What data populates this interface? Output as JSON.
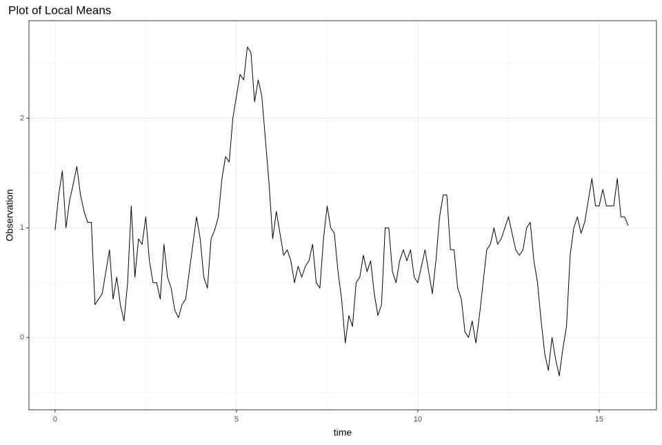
{
  "chart_data": {
    "type": "line",
    "title": "Plot of Local Means",
    "x_label": "time",
    "y_label": "Observation",
    "x": [
      0,
      0.1,
      0.2,
      0.3,
      0.4,
      0.5,
      0.6,
      0.7,
      0.8,
      0.9,
      1,
      1.1,
      1.2,
      1.3,
      1.4,
      1.5,
      1.6,
      1.7,
      1.8,
      1.9,
      2,
      2.1,
      2.2,
      2.3,
      2.4,
      2.5,
      2.6,
      2.7,
      2.8,
      2.9,
      3,
      3.1,
      3.2,
      3.3,
      3.4,
      3.5,
      3.6,
      3.7,
      3.8,
      3.9,
      4,
      4.1,
      4.2,
      4.3,
      4.4,
      4.5,
      4.6,
      4.7,
      4.8,
      4.9,
      5,
      5.1,
      5.2,
      5.3,
      5.4,
      5.5,
      5.6,
      5.7,
      5.8,
      5.9,
      6,
      6.1,
      6.2,
      6.3,
      6.4,
      6.5,
      6.6,
      6.7,
      6.8,
      6.9,
      7,
      7.1,
      7.2,
      7.3,
      7.4,
      7.5,
      7.6,
      7.7,
      7.8,
      7.9,
      8,
      8.1,
      8.2,
      8.3,
      8.4,
      8.5,
      8.6,
      8.7,
      8.8,
      8.9,
      9,
      9.1,
      9.2,
      9.3,
      9.4,
      9.5,
      9.6,
      9.7,
      9.8,
      9.9,
      10,
      10.1,
      10.2,
      10.3,
      10.4,
      10.5,
      10.6,
      10.7,
      10.8,
      10.9,
      11,
      11.1,
      11.2,
      11.3,
      11.4,
      11.5,
      11.6,
      11.7,
      11.8,
      11.9,
      12,
      12.1,
      12.2,
      12.3,
      12.4,
      12.5,
      12.6,
      12.7,
      12.8,
      12.9,
      13,
      13.1,
      13.2,
      13.3,
      13.4,
      13.5,
      13.6,
      13.7,
      13.8,
      13.9,
      14,
      14.1,
      14.2,
      14.3,
      14.4,
      14.5,
      14.6,
      14.7,
      14.8,
      14.9,
      15,
      15.1,
      15.2,
      15.3,
      15.4,
      15.5,
      15.6,
      15.7,
      15.8
    ],
    "series": [
      {
        "color": "#000000",
        "values": [
          0.98,
          1.3,
          1.52,
          1.0,
          1.25,
          1.4,
          1.56,
          1.3,
          1.15,
          1.05,
          1.05,
          0.3,
          0.35,
          0.4,
          0.6,
          0.8,
          0.35,
          0.55,
          0.3,
          0.15,
          0.5,
          1.2,
          0.55,
          0.9,
          0.85,
          1.1,
          0.7,
          0.5,
          0.5,
          0.35,
          0.85,
          0.55,
          0.45,
          0.25,
          0.18,
          0.3,
          0.35,
          0.6,
          0.85,
          1.1,
          0.9,
          0.55,
          0.45,
          0.9,
          0.98,
          1.1,
          1.45,
          1.65,
          1.6,
          2.0,
          2.2,
          2.4,
          2.35,
          2.65,
          2.6,
          2.15,
          2.35,
          2.2,
          1.8,
          1.4,
          0.9,
          1.15,
          0.95,
          0.75,
          0.8,
          0.7,
          0.5,
          0.65,
          0.55,
          0.65,
          0.7,
          0.85,
          0.5,
          0.45,
          0.9,
          1.2,
          1.0,
          0.95,
          0.6,
          0.35,
          -0.05,
          0.2,
          0.1,
          0.5,
          0.55,
          0.75,
          0.6,
          0.7,
          0.4,
          0.2,
          0.3,
          1.0,
          1.0,
          0.6,
          0.5,
          0.7,
          0.8,
          0.7,
          0.8,
          0.55,
          0.5,
          0.65,
          0.8,
          0.6,
          0.4,
          0.7,
          1.1,
          1.3,
          1.3,
          0.8,
          0.8,
          0.45,
          0.35,
          0.05,
          0.0,
          0.15,
          -0.05,
          0.2,
          0.5,
          0.8,
          0.85,
          1.0,
          0.85,
          0.9,
          1.0,
          1.1,
          0.95,
          0.8,
          0.75,
          0.8,
          1.0,
          1.05,
          0.7,
          0.5,
          0.15,
          -0.15,
          -0.3,
          0.0,
          -0.2,
          -0.35,
          -0.1,
          0.1,
          0.75,
          1.0,
          1.1,
          0.95,
          1.05,
          1.25,
          1.45,
          1.2,
          1.2,
          1.35,
          1.2,
          1.2,
          1.2,
          1.45,
          1.1,
          1.1,
          1.02
        ]
      }
    ],
    "xlim": [
      -0.72,
      16.58
    ],
    "ylim": [
      -0.66,
      2.89
    ],
    "xticks": [
      0,
      5,
      10,
      15
    ],
    "yticks": [
      0,
      1,
      2
    ],
    "x_minor_ticks": [
      2.5,
      7.5,
      12.5
    ],
    "y_minor_ticks": [
      -0.5,
      0.5,
      1.5,
      2.5
    ],
    "grid": true
  }
}
